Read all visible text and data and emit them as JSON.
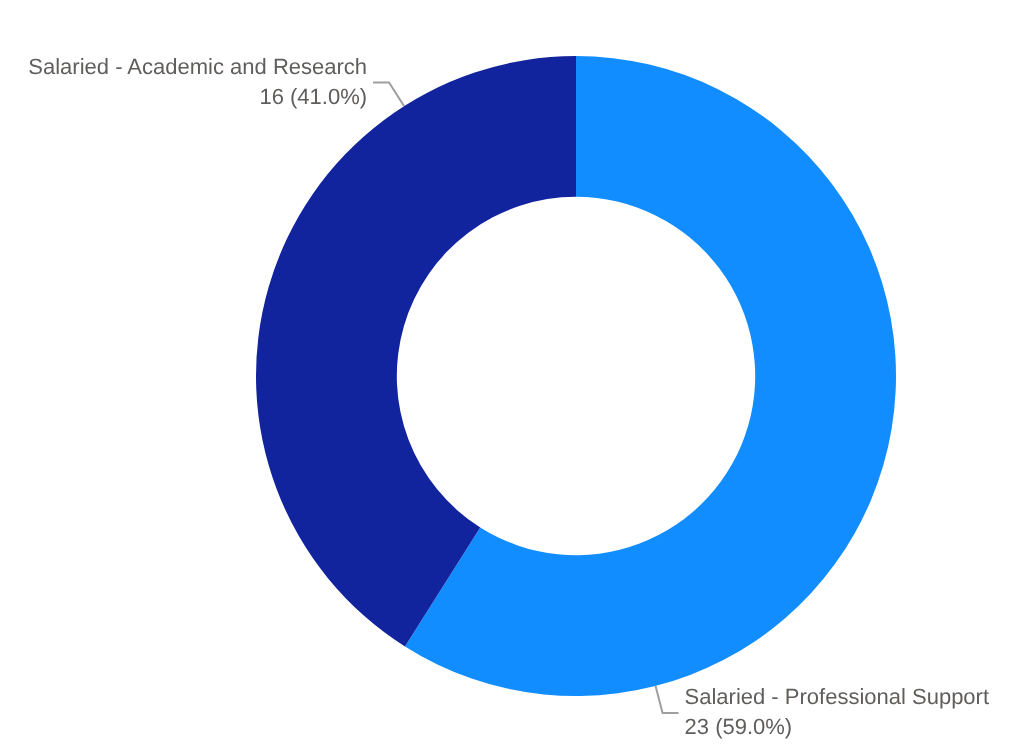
{
  "chart_data": {
    "type": "donut",
    "categories": [
      "Salaried - Professional Support",
      "Salaried - Academic and Research"
    ],
    "values": [
      23,
      16
    ],
    "colors": [
      "#118dff",
      "#12239e"
    ],
    "value_labels": [
      "23 (59.0%)",
      "16 (41.0%)"
    ],
    "legend": false
  }
}
